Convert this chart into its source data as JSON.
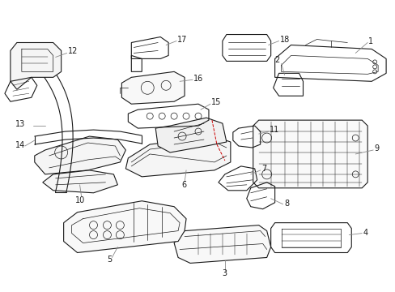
{
  "background_color": "#ffffff",
  "line_color": "#1a1a1a",
  "red_color": "#cc0000",
  "gray_color": "#888888",
  "figsize": [
    4.89,
    3.6
  ],
  "dpi": 100,
  "xlim": [
    0,
    489
  ],
  "ylim": [
    0,
    360
  ]
}
